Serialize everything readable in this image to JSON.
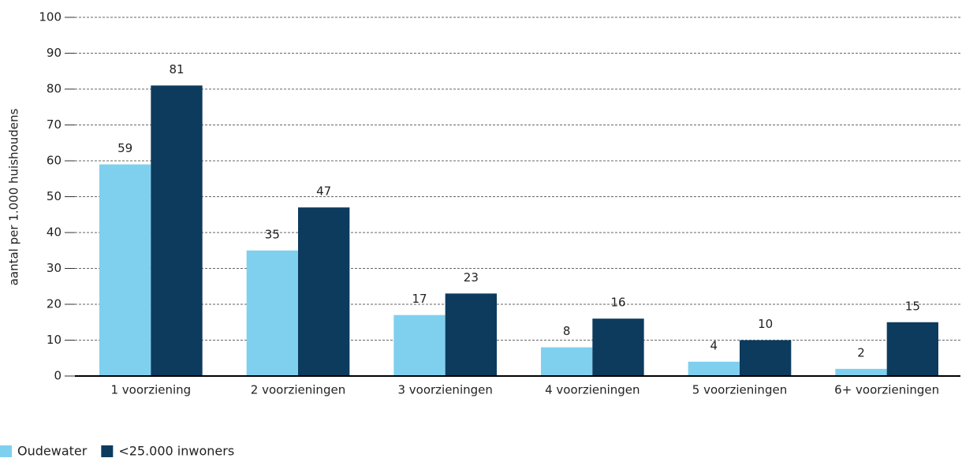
{
  "chart_data": {
    "type": "bar",
    "y_label": "aantal per 1.000 huishoudens",
    "categories": [
      "1 voorziening",
      "2 voorzieningen",
      "3 voorzieningen",
      "4 voorzieningen",
      "5 voorzieningen",
      "6+ voorzieningen"
    ],
    "series": [
      {
        "name": "Oudewater",
        "color": "#7fd0ee",
        "values": [
          59,
          35,
          17,
          8,
          4,
          2
        ]
      },
      {
        "name": "<25.000 inwoners",
        "color": "#0c3b5e",
        "values": [
          81,
          47,
          23,
          16,
          10,
          15
        ]
      }
    ],
    "ylim": [
      0,
      100
    ],
    "yticks": [
      0,
      10,
      20,
      30,
      40,
      50,
      60,
      70,
      80,
      90,
      100
    ],
    "grid": true
  }
}
